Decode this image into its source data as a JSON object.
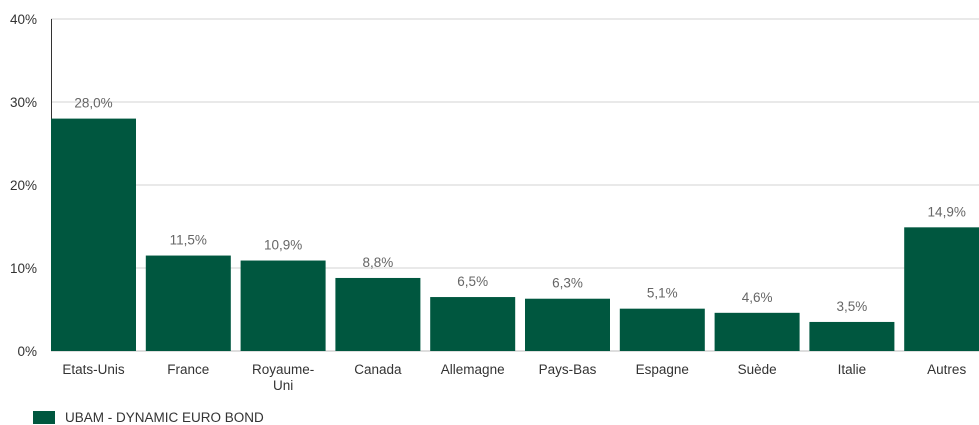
{
  "chart_data": {
    "type": "bar",
    "categories": [
      "Etats-Unis",
      "France",
      "Royaume-Uni",
      "Canada",
      "Allemagne",
      "Pays-Bas",
      "Espagne",
      "Suède",
      "Italie",
      "Autres"
    ],
    "category_lines": [
      [
        "Etats-Unis"
      ],
      [
        "France"
      ],
      [
        "Royaume-",
        "Uni"
      ],
      [
        "Canada"
      ],
      [
        "Allemagne"
      ],
      [
        "Pays-Bas"
      ],
      [
        "Espagne"
      ],
      [
        "Suède"
      ],
      [
        "Italie"
      ],
      [
        "Autres"
      ]
    ],
    "series": [
      {
        "name": "UBAM - DYNAMIC EURO BOND",
        "values": [
          28.0,
          11.5,
          10.9,
          8.8,
          6.5,
          6.3,
          5.1,
          4.6,
          3.5,
          14.9
        ],
        "labels": [
          "28,0%",
          "11,5%",
          "10,9%",
          "8,8%",
          "6,5%",
          "6,3%",
          "5,1%",
          "4,6%",
          "3,5%",
          "14,9%"
        ]
      }
    ],
    "yticks": [
      0,
      10,
      20,
      30,
      40
    ],
    "ytick_labels": [
      "0%",
      "10%",
      "20%",
      "30%",
      "40%"
    ],
    "ylim": [
      0,
      40
    ],
    "grid": true,
    "legend_position": "bottom-left",
    "bar_color": "#00573f",
    "grid_color": "#d3d3d3"
  }
}
